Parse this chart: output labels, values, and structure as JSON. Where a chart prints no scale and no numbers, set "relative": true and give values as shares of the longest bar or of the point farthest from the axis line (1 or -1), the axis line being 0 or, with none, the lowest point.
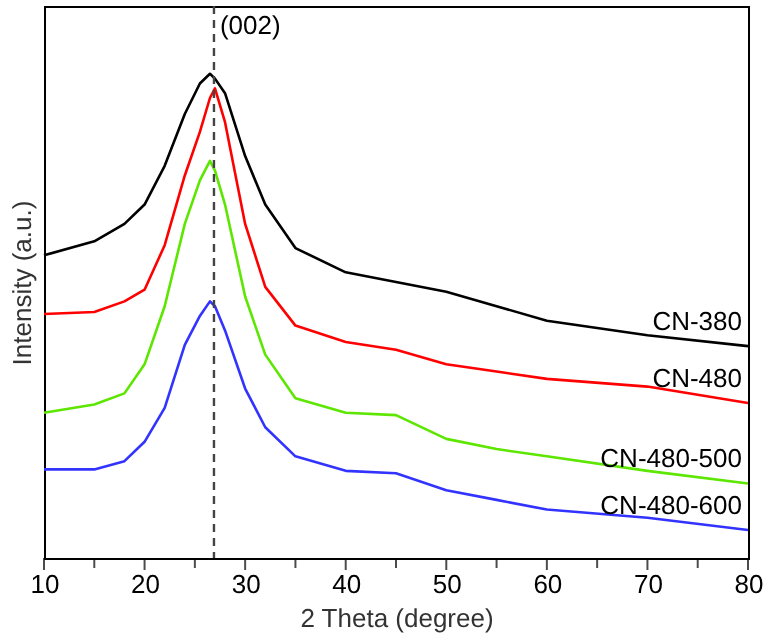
{
  "chart_data": {
    "type": "line",
    "relative": true,
    "xlabel": "2 Theta (degree)",
    "ylabel": "Intensity (a.u.)",
    "xlim": [
      10,
      80
    ],
    "xticks": [
      10,
      {
        "value": 15,
        "label": null
      },
      20,
      {
        "value": 25,
        "label": null
      },
      30,
      {
        "value": 35,
        "label": null
      },
      40,
      {
        "value": 45,
        "label": null
      },
      50,
      {
        "value": 55,
        "label": null
      },
      60,
      {
        "value": 65,
        "label": null
      },
      70,
      {
        "value": 75,
        "label": null
      },
      80
    ],
    "x": [
      10,
      15,
      18,
      20,
      22,
      24,
      25.5,
      26.5,
      27,
      28,
      30,
      32,
      35,
      40,
      45,
      50,
      55,
      60,
      70,
      80
    ],
    "series": [
      {
        "name": "CN-380",
        "color": "#000000",
        "values": [
          0.625,
          0.654,
          0.69,
          0.73,
          0.81,
          0.917,
          0.98,
          1.0,
          0.99,
          0.96,
          0.83,
          0.73,
          0.64,
          0.59,
          0.57,
          0.55,
          0.52,
          0.49,
          0.46,
          0.4375
        ]
      },
      {
        "name": "CN-480",
        "color": "#ff0000",
        "values": [
          0.504,
          0.508,
          0.53,
          0.554,
          0.646,
          0.79,
          0.88,
          0.95,
          0.97,
          0.9,
          0.69,
          0.56,
          0.48,
          0.446,
          0.43,
          0.4,
          0.385,
          0.37,
          0.354,
          0.32
        ]
      },
      {
        "name": "CN-480-500",
        "color": "#5ce600",
        "values": [
          0.3,
          0.317,
          0.34,
          0.4,
          0.52,
          0.69,
          0.78,
          0.82,
          0.8,
          0.73,
          0.54,
          0.42,
          0.33,
          0.3,
          0.295,
          0.246,
          0.225,
          0.21,
          0.18,
          0.154
        ]
      },
      {
        "name": "CN-480-600",
        "color": "#3333ff",
        "values": [
          0.183,
          0.183,
          0.2,
          0.24,
          0.31,
          0.44,
          0.5,
          0.53,
          0.52,
          0.47,
          0.35,
          0.27,
          0.21,
          0.18,
          0.175,
          0.14,
          0.12,
          0.1,
          0.083,
          0.058
        ]
      }
    ],
    "ref_lines": [
      {
        "axis": "x",
        "value": 26.9,
        "line_style": "dashed",
        "color": "#444444"
      }
    ],
    "annotations": [
      {
        "text": "(002)",
        "x": 26.9
      }
    ],
    "grid": false,
    "marker": "none",
    "line_style": "solid"
  }
}
